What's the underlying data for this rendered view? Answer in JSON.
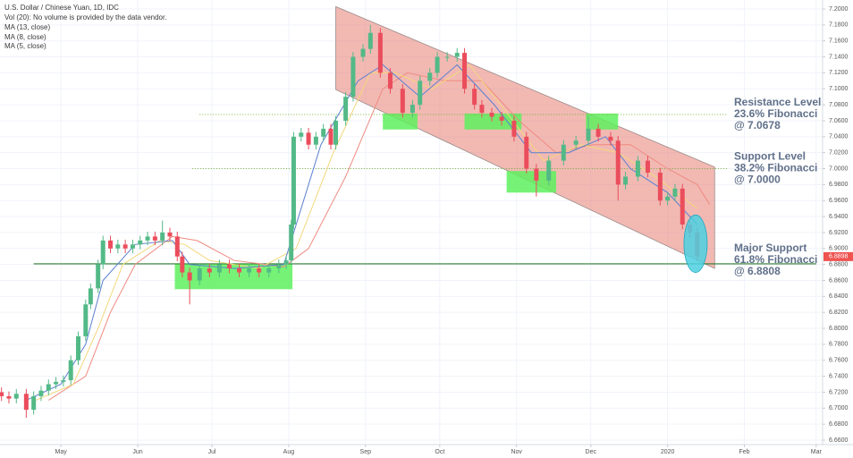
{
  "chart_data": {
    "type": "candlestick",
    "title": "U.S. Dollar / Chinese Yuan, 1D, IDC",
    "subtitle": "Vol (20): No volume is provided by the data vendor.",
    "x": [
      6,
      9,
      12,
      16,
      19,
      22,
      25,
      28,
      31,
      34,
      37,
      40,
      42,
      45,
      47,
      50,
      53,
      56,
      59,
      62,
      65,
      68,
      71,
      74,
      77,
      79,
      82,
      86,
      90,
      94,
      98,
      102,
      106,
      110,
      114,
      118,
      121,
      123,
      124,
      127,
      130,
      133,
      136,
      139,
      141,
      145,
      148,
      152,
      155,
      159,
      163,
      168,
      172,
      175,
      179,
      182,
      186,
      190,
      193,
      197,
      200,
      204,
      208,
      213,
      218,
      222,
      227,
      233,
      238,
      243,
      247,
      252,
      255,
      258,
      263,
      267,
      272,
      275,
      278,
      281,
      284,
      287
    ],
    "open": [
      6.72,
      6.715,
      6.712,
      6.718,
      6.698,
      6.715,
      6.722,
      6.73,
      6.733,
      6.735,
      6.76,
      6.79,
      6.83,
      6.85,
      6.88,
      6.91,
      6.9,
      6.905,
      6.9,
      6.905,
      6.91,
      6.915,
      6.91,
      6.92,
      6.915,
      6.89,
      6.87,
      6.86,
      6.875,
      6.87,
      6.88,
      6.875,
      6.87,
      6.875,
      6.87,
      6.875,
      6.88,
      6.885,
      6.93,
      7.04,
      7.045,
      7.03,
      7.04,
      7.05,
      7.03,
      7.06,
      7.09,
      7.14,
      7.15,
      7.17,
      7.12,
      7.1,
      7.07,
      7.08,
      7.11,
      7.12,
      7.14,
      7.14,
      7.145,
      7.1,
      7.08,
      7.07,
      7.065,
      7.06,
      7.04,
      7.0,
      6.985,
      7.01,
      7.03,
      7.035,
      7.05,
      7.04,
      7.035,
      6.98,
      6.99,
      7.01,
      6.995,
      6.96,
      6.965,
      6.975,
      6.93,
      6.92
    ],
    "high": [
      6.726,
      6.721,
      6.724,
      6.724,
      6.721,
      6.728,
      6.736,
      6.739,
      6.741,
      6.766,
      6.796,
      6.836,
      6.856,
      6.886,
      6.916,
      6.916,
      6.911,
      6.911,
      6.911,
      6.916,
      6.921,
      6.921,
      6.935,
      6.926,
      6.921,
      6.896,
      6.876,
      6.881,
      6.881,
      6.886,
      6.886,
      6.881,
      6.881,
      6.881,
      6.881,
      6.886,
      6.891,
      6.936,
      7.046,
      7.051,
      7.051,
      7.046,
      7.056,
      7.056,
      7.066,
      7.096,
      7.146,
      7.156,
      7.18,
      7.176,
      7.126,
      7.106,
      7.086,
      7.116,
      7.126,
      7.146,
      7.146,
      7.151,
      7.151,
      7.106,
      7.086,
      7.076,
      7.071,
      7.066,
      7.046,
      7.006,
      7.016,
      7.036,
      7.041,
      7.066,
      7.056,
      7.046,
      7.041,
      6.996,
      7.016,
      7.016,
      7.001,
      6.971,
      6.981,
      6.981,
      6.936,
      6.926
    ],
    "low": [
      6.709,
      6.706,
      6.706,
      6.688,
      6.692,
      6.709,
      6.716,
      6.724,
      6.727,
      6.729,
      6.754,
      6.784,
      6.824,
      6.844,
      6.874,
      6.894,
      6.894,
      6.894,
      6.894,
      6.899,
      6.904,
      6.904,
      6.904,
      6.909,
      6.884,
      6.864,
      6.83,
      6.854,
      6.864,
      6.864,
      6.869,
      6.864,
      6.864,
      6.864,
      6.864,
      6.869,
      6.874,
      6.879,
      6.924,
      7.034,
      7.024,
      7.024,
      7.034,
      7.024,
      7.024,
      7.054,
      7.084,
      7.134,
      7.144,
      7.114,
      7.094,
      7.064,
      7.064,
      7.074,
      7.104,
      7.114,
      7.134,
      7.134,
      7.094,
      7.074,
      7.064,
      7.059,
      7.054,
      7.034,
      6.994,
      6.965,
      6.979,
      7.004,
      7.024,
      7.029,
      7.034,
      7.029,
      6.96,
      6.974,
      6.984,
      6.989,
      6.954,
      6.954,
      6.959,
      6.924,
      6.914,
      6.884
    ],
    "close": [
      6.715,
      6.712,
      6.718,
      6.698,
      6.715,
      6.722,
      6.73,
      6.733,
      6.735,
      6.76,
      6.79,
      6.83,
      6.85,
      6.88,
      6.91,
      6.9,
      6.905,
      6.9,
      6.905,
      6.91,
      6.915,
      6.91,
      6.92,
      6.915,
      6.89,
      6.87,
      6.86,
      6.875,
      6.87,
      6.88,
      6.875,
      6.87,
      6.875,
      6.87,
      6.875,
      6.88,
      6.885,
      6.93,
      7.04,
      7.045,
      7.03,
      7.04,
      7.05,
      7.03,
      7.06,
      7.09,
      7.14,
      7.15,
      7.17,
      7.12,
      7.1,
      7.07,
      7.08,
      7.11,
      7.12,
      7.14,
      7.14,
      7.145,
      7.1,
      7.08,
      7.07,
      7.065,
      7.06,
      7.04,
      7.0,
      6.985,
      7.01,
      7.03,
      7.035,
      7.05,
      7.04,
      7.035,
      6.98,
      6.99,
      7.01,
      6.995,
      6.96,
      6.965,
      6.975,
      6.93,
      6.92,
      6.89
    ],
    "up_color": "#53b987",
    "down_color": "#eb4d5c",
    "series": [
      {
        "name": "MA (13, close)",
        "color": "#ef8a80",
        "x": [
          25,
          40,
          50,
          60,
          75,
          85,
          100,
          120,
          130,
          145,
          160,
          170,
          185,
          200,
          215,
          230,
          245,
          260,
          275,
          287,
          292
        ],
        "values": [
          6.71,
          6.74,
          6.82,
          6.88,
          6.915,
          6.91,
          6.885,
          6.877,
          6.9,
          6.99,
          7.1,
          7.12,
          7.11,
          7.11,
          7.06,
          7.02,
          7.03,
          7.03,
          7.0,
          6.98,
          6.955
        ]
      },
      {
        "name": "MA (8, close)",
        "color": "#f3d77b",
        "x": [
          20,
          35,
          45,
          55,
          70,
          80,
          90,
          110,
          125,
          140,
          155,
          165,
          180,
          195,
          210,
          225,
          240,
          255,
          270,
          287
        ],
        "values": [
          6.71,
          6.73,
          6.8,
          6.88,
          6.91,
          6.905,
          6.885,
          6.875,
          6.9,
          7.02,
          7.12,
          7.12,
          7.1,
          7.13,
          7.07,
          7.01,
          7.03,
          7.02,
          6.99,
          6.95
        ]
      },
      {
        "name": "MA (5, close)",
        "color": "#5b7fd1",
        "x": [
          16,
          30,
          40,
          47,
          60,
          75,
          82,
          100,
          120,
          124,
          135,
          150,
          160,
          175,
          190,
          205,
          220,
          235,
          250,
          260,
          275,
          287
        ],
        "values": [
          6.71,
          6.73,
          6.78,
          6.86,
          6.905,
          6.91,
          6.88,
          6.875,
          6.88,
          6.92,
          7.03,
          7.11,
          7.13,
          7.09,
          7.13,
          7.08,
          7.02,
          7.02,
          7.04,
          7.0,
          6.97,
          6.93
        ]
      }
    ],
    "channel": {
      "x": [
        141,
        294
      ],
      "upper": [
        7.203,
        7.002
      ],
      "lower": [
        7.099,
        6.875
      ],
      "color": "#e57368"
    },
    "zones": [
      {
        "x": [
          76,
          123.5
        ],
        "y": [
          6.849,
          6.881
        ]
      },
      {
        "x": [
          160,
          174
        ],
        "y": [
          7.049,
          7.069
        ]
      },
      {
        "x": [
          193,
          216
        ],
        "y": [
          7.049,
          7.069
        ]
      },
      {
        "x": [
          210,
          230
        ],
        "y": [
          6.97,
          6.997
        ]
      },
      {
        "x": [
          242,
          255
        ],
        "y": [
          7.049,
          7.069
        ]
      }
    ],
    "zone_color": "#5ef05e",
    "highlight": {
      "x": 286.3,
      "y": 6.906,
      "rx": 4.7,
      "ry": 0.036,
      "color": "#4dd0e1"
    },
    "levels": [
      {
        "value": 7.0678,
        "x": [
          86,
          299
        ],
        "style": "dotted",
        "color": "#7cb342",
        "label": [
          "Resistance Level",
          "23.6% Fibonacci",
          "@ 7.0678"
        ]
      },
      {
        "value": 7.0,
        "x": [
          83,
          299
        ],
        "style": "dotted",
        "color": "#7cb342",
        "label": [
          "Support Level",
          "38.2% Fibonacci",
          "@ 7.0000"
        ]
      },
      {
        "value": 6.8808,
        "x": [
          19,
          335
        ],
        "style": "solid",
        "color": "#2e7d32",
        "label": [
          "Major Support",
          "61.8% Fibonacci",
          "@ 6.8808"
        ]
      }
    ],
    "last_price": 6.8898,
    "last_price_color": "#ef5350",
    "grid": true,
    "xlim": [
      5.4,
      337.6
    ],
    "xticks": [
      {
        "value": 30,
        "label": "May"
      },
      {
        "value": 61,
        "label": "Jun"
      },
      {
        "value": 91,
        "label": "Jul"
      },
      {
        "value": 122,
        "label": "Aug"
      },
      {
        "value": 153,
        "label": "Sep"
      },
      {
        "value": 183,
        "label": "Oct"
      },
      {
        "value": 214,
        "label": "Nov"
      },
      {
        "value": 244,
        "label": "Dec"
      },
      {
        "value": 275,
        "label": "2020"
      },
      {
        "value": 306,
        "label": "Feb"
      },
      {
        "value": 335,
        "label": "Mar"
      }
    ],
    "ylim": [
      6.6544,
      7.2112
    ],
    "yticks": [
      {
        "value": 7.2,
        "label": "7.2000"
      },
      {
        "value": 7.18,
        "label": "7.1800"
      },
      {
        "value": 7.16,
        "label": "7.1600"
      },
      {
        "value": 7.14,
        "label": "7.1400"
      },
      {
        "value": 7.12,
        "label": "7.1200"
      },
      {
        "value": 7.1,
        "label": "7.1000"
      },
      {
        "value": 7.08,
        "label": "7.0800"
      },
      {
        "value": 7.06,
        "label": "7.0600"
      },
      {
        "value": 7.04,
        "label": "7.0400"
      },
      {
        "value": 7.02,
        "label": "7.0200"
      },
      {
        "value": 7.0,
        "label": "7.0000"
      },
      {
        "value": 6.98,
        "label": "6.9800"
      },
      {
        "value": 6.96,
        "label": "6.9600"
      },
      {
        "value": 6.94,
        "label": "6.9400"
      },
      {
        "value": 6.92,
        "label": "6.9200"
      },
      {
        "value": 6.9,
        "label": "6.9000"
      },
      {
        "value": 6.88,
        "label": "6.8800"
      },
      {
        "value": 6.86,
        "label": "6.8600"
      },
      {
        "value": 6.84,
        "label": "6.8400"
      },
      {
        "value": 6.82,
        "label": "6.8200"
      },
      {
        "value": 6.8,
        "label": "6.8000"
      },
      {
        "value": 6.78,
        "label": "6.7800"
      },
      {
        "value": 6.76,
        "label": "6.7600"
      },
      {
        "value": 6.74,
        "label": "6.7400"
      },
      {
        "value": 6.72,
        "label": "6.7200"
      },
      {
        "value": 6.7,
        "label": "6.7000"
      },
      {
        "value": 6.68,
        "label": "6.6800"
      },
      {
        "value": 6.66,
        "label": "6.6600"
      }
    ]
  }
}
